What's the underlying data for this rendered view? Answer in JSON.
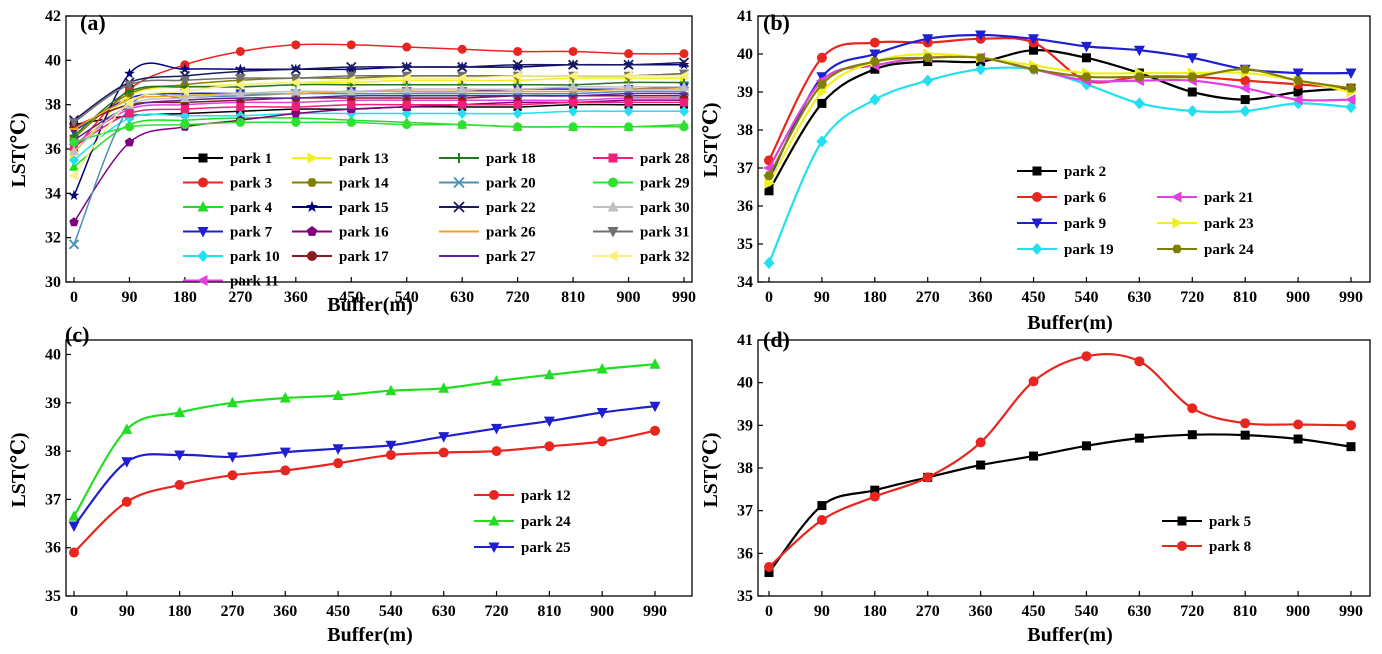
{
  "chart_data": [
    {
      "panel": "(a)",
      "type": "line",
      "xlabel": "Buffer(m)",
      "ylabel": "LST(℃)",
      "ylim": [
        30,
        42
      ],
      "yticks": [
        "30",
        "32",
        "34",
        "36",
        "38",
        "40",
        "42"
      ],
      "x": [
        0,
        90,
        180,
        270,
        360,
        450,
        540,
        630,
        720,
        810,
        900,
        990
      ],
      "x_ticks": [
        "0",
        "90",
        "180",
        "270",
        "360",
        "450",
        "540",
        "630",
        "720",
        "810",
        "900",
        "990"
      ],
      "legend_position": "bottom",
      "series": [
        {
          "name": "park 1",
          "color": "#000000",
          "marker": "square",
          "values": [
            37.1,
            37.5,
            37.6,
            37.7,
            37.8,
            37.8,
            37.9,
            37.9,
            37.9,
            38.0,
            38.0,
            38.0
          ]
        },
        {
          "name": "park 3",
          "color": "#e8251f",
          "marker": "circle",
          "values": [
            36.0,
            38.7,
            39.8,
            40.4,
            40.7,
            40.7,
            40.6,
            40.5,
            40.4,
            40.4,
            40.3,
            40.3
          ]
        },
        {
          "name": "park 4",
          "color": "#22dd22",
          "marker": "triangle-up",
          "values": [
            35.2,
            37.1,
            37.3,
            37.4,
            37.4,
            37.3,
            37.2,
            37.1,
            37.0,
            37.0,
            37.0,
            37.1
          ]
        },
        {
          "name": "park 7",
          "color": "#1f1fd0",
          "marker": "triangle-down",
          "values": [
            36.8,
            38.3,
            38.5,
            38.5,
            38.5,
            38.6,
            38.6,
            38.6,
            38.7,
            38.7,
            38.7,
            38.8
          ]
        },
        {
          "name": "park 10",
          "color": "#22e0f0",
          "marker": "diamond",
          "values": [
            35.5,
            37.4,
            37.5,
            37.5,
            37.6,
            37.6,
            37.6,
            37.6,
            37.6,
            37.7,
            37.7,
            37.7
          ]
        },
        {
          "name": "park 11",
          "color": "#e040e0",
          "marker": "triangle-left",
          "values": [
            36.2,
            37.8,
            38.0,
            38.1,
            38.1,
            38.2,
            38.2,
            38.2,
            38.2,
            38.2,
            38.3,
            38.3
          ]
        },
        {
          "name": "park 13",
          "color": "#f0f020",
          "marker": "triangle-right",
          "values": [
            35.8,
            38.4,
            38.8,
            38.9,
            39.0,
            39.0,
            39.1,
            39.1,
            39.1,
            39.2,
            39.2,
            39.2
          ]
        },
        {
          "name": "park 14",
          "color": "#808000",
          "marker": "hexagon",
          "values": [
            36.5,
            38.5,
            38.9,
            39.1,
            39.2,
            39.2,
            39.3,
            39.3,
            39.3,
            39.3,
            39.3,
            39.4
          ]
        },
        {
          "name": "park 15",
          "color": "#000080",
          "marker": "star",
          "values": [
            33.9,
            39.4,
            39.6,
            39.6,
            39.6,
            39.6,
            39.7,
            39.7,
            39.7,
            39.8,
            39.8,
            39.8
          ]
        },
        {
          "name": "park 16",
          "color": "#800080",
          "marker": "pentagon",
          "values": [
            32.7,
            36.3,
            37.0,
            37.3,
            37.6,
            37.8,
            37.9,
            38.0,
            38.1,
            38.1,
            38.2,
            38.2
          ]
        },
        {
          "name": "park 17",
          "color": "#8b1a1a",
          "marker": "circle",
          "values": [
            37.0,
            38.0,
            38.1,
            38.2,
            38.3,
            38.3,
            38.3,
            38.3,
            38.4,
            38.4,
            38.4,
            38.4
          ]
        },
        {
          "name": "park 18",
          "color": "#207820",
          "marker": "plus",
          "values": [
            36.6,
            38.6,
            38.8,
            38.8,
            38.9,
            38.9,
            38.9,
            38.9,
            38.9,
            38.9,
            39.0,
            39.0
          ]
        },
        {
          "name": "park 20",
          "color": "#4a90b8",
          "marker": "x",
          "values": [
            31.7,
            37.9,
            38.3,
            38.4,
            38.5,
            38.5,
            38.5,
            38.5,
            38.5,
            38.5,
            38.6,
            38.6
          ]
        },
        {
          "name": "park 22",
          "color": "#1a1a60",
          "marker": "x",
          "values": [
            37.3,
            39.0,
            39.3,
            39.5,
            39.6,
            39.7,
            39.7,
            39.7,
            39.8,
            39.8,
            39.8,
            39.9
          ]
        },
        {
          "name": "park 26",
          "color": "#f0a020",
          "marker": "dash",
          "values": [
            36.9,
            38.2,
            38.4,
            38.5,
            38.5,
            38.6,
            38.6,
            38.6,
            38.6,
            38.6,
            38.7,
            38.7
          ]
        },
        {
          "name": "park 27",
          "color": "#6020a0",
          "marker": "dash",
          "values": [
            36.4,
            37.9,
            38.2,
            38.3,
            38.3,
            38.4,
            38.4,
            38.4,
            38.4,
            38.4,
            38.5,
            38.5
          ]
        },
        {
          "name": "park 28",
          "color": "#f0207a",
          "marker": "square",
          "values": [
            36.1,
            37.6,
            37.8,
            37.9,
            37.9,
            38.0,
            38.0,
            38.0,
            38.0,
            38.1,
            38.1,
            38.1
          ]
        },
        {
          "name": "park 29",
          "color": "#30e030",
          "marker": "circle",
          "values": [
            36.3,
            37.0,
            37.1,
            37.2,
            37.2,
            37.2,
            37.1,
            37.1,
            37.0,
            37.0,
            37.0,
            37.0
          ]
        },
        {
          "name": "park 30",
          "color": "#c0c0c0",
          "marker": "triangle-up",
          "values": [
            35.9,
            38.0,
            38.3,
            38.5,
            38.6,
            38.6,
            38.7,
            38.7,
            38.7,
            38.8,
            38.8,
            38.8
          ]
        },
        {
          "name": "park 31",
          "color": "#707070",
          "marker": "triangle-down",
          "values": [
            37.2,
            38.9,
            39.1,
            39.2,
            39.2,
            39.3,
            39.3,
            39.3,
            39.3,
            39.3,
            39.3,
            39.4
          ]
        },
        {
          "name": "park 32",
          "color": "#f8f080",
          "marker": "triangle-left",
          "values": [
            34.8,
            38.1,
            38.6,
            38.9,
            39.0,
            39.1,
            39.2,
            39.2,
            39.3,
            39.3,
            39.3,
            39.3
          ]
        }
      ]
    },
    {
      "panel": "(b)",
      "type": "line",
      "xlabel": "Buffer(m)",
      "ylabel": "LST(℃)",
      "ylim": [
        34,
        41
      ],
      "yticks": [
        "34",
        "35",
        "36",
        "37",
        "38",
        "39",
        "40",
        "41"
      ],
      "x": [
        0,
        90,
        180,
        270,
        360,
        450,
        540,
        630,
        720,
        810,
        900,
        990
      ],
      "x_ticks": [
        "0",
        "90",
        "180",
        "270",
        "360",
        "450",
        "540",
        "630",
        "720",
        "810",
        "900",
        "990"
      ],
      "legend_position": "bottom-center",
      "series": [
        {
          "name": "park 2",
          "color": "#000000",
          "marker": "square",
          "values": [
            36.4,
            38.7,
            39.6,
            39.8,
            39.8,
            40.1,
            39.9,
            39.5,
            39.0,
            38.8,
            39.0,
            39.1
          ]
        },
        {
          "name": "park 6",
          "color": "#e8251f",
          "marker": "circle",
          "values": [
            37.2,
            39.9,
            40.3,
            40.3,
            40.4,
            40.3,
            39.3,
            39.4,
            39.4,
            39.3,
            39.2,
            39.1
          ]
        },
        {
          "name": "park 9",
          "color": "#1f1fd0",
          "marker": "triangle-down",
          "values": [
            36.7,
            39.4,
            40.0,
            40.4,
            40.5,
            40.4,
            40.2,
            40.1,
            39.9,
            39.6,
            39.5,
            39.5
          ]
        },
        {
          "name": "park 19",
          "color": "#22e0f0",
          "marker": "diamond",
          "values": [
            34.5,
            37.7,
            38.8,
            39.3,
            39.6,
            39.6,
            39.2,
            38.7,
            38.5,
            38.5,
            38.7,
            38.6
          ]
        },
        {
          "name": "park 21",
          "color": "#e040e0",
          "marker": "triangle-left",
          "values": [
            37.0,
            39.3,
            39.7,
            39.9,
            39.9,
            39.6,
            39.3,
            39.3,
            39.3,
            39.1,
            38.8,
            38.8
          ]
        },
        {
          "name": "park 23",
          "color": "#f0f020",
          "marker": "triangle-right",
          "values": [
            36.6,
            39.0,
            39.8,
            40.0,
            39.9,
            39.7,
            39.5,
            39.5,
            39.5,
            39.5,
            39.3,
            39.0
          ]
        },
        {
          "name": "park 24",
          "color": "#808000",
          "marker": "hexagon",
          "values": [
            36.8,
            39.2,
            39.8,
            39.9,
            39.9,
            39.6,
            39.4,
            39.4,
            39.4,
            39.6,
            39.3,
            39.1
          ]
        }
      ]
    },
    {
      "panel": "(c)",
      "type": "line",
      "xlabel": "Buffer(m)",
      "ylabel": "LST(℃)",
      "ylim": [
        35,
        40.3
      ],
      "yticks": [
        "35",
        "36",
        "37",
        "38",
        "39",
        "40"
      ],
      "x": [
        0,
        90,
        180,
        270,
        360,
        450,
        540,
        630,
        720,
        810,
        900,
        990
      ],
      "x_ticks": [
        "0",
        "90",
        "180",
        "270",
        "360",
        "450",
        "540",
        "630",
        "720",
        "810",
        "900",
        "990"
      ],
      "legend_position": "right-center",
      "series": [
        {
          "name": "park 12",
          "color": "#e8251f",
          "marker": "circle",
          "values": [
            35.9,
            36.95,
            37.3,
            37.5,
            37.6,
            37.75,
            37.92,
            37.97,
            38.0,
            38.1,
            38.2,
            38.42
          ]
        },
        {
          "name": "park 24",
          "color": "#22dd22",
          "marker": "triangle-up",
          "values": [
            36.65,
            38.45,
            38.8,
            39.0,
            39.1,
            39.15,
            39.25,
            39.3,
            39.45,
            39.58,
            39.7,
            39.8
          ]
        },
        {
          "name": "park 25",
          "color": "#1f1fd0",
          "marker": "triangle-down",
          "values": [
            36.45,
            37.78,
            37.92,
            37.88,
            37.98,
            38.05,
            38.12,
            38.3,
            38.47,
            38.62,
            38.8,
            38.93
          ]
        }
      ]
    },
    {
      "panel": "(d)",
      "type": "line",
      "xlabel": "Buffer(m)",
      "ylabel": "LST(℃)",
      "ylim": [
        35,
        41
      ],
      "yticks": [
        "35",
        "36",
        "37",
        "38",
        "39",
        "40",
        "41"
      ],
      "x": [
        0,
        90,
        180,
        270,
        360,
        450,
        540,
        630,
        720,
        810,
        900,
        990
      ],
      "x_ticks": [
        "0",
        "90",
        "180",
        "270",
        "360",
        "450",
        "540",
        "630",
        "720",
        "810",
        "900",
        "990"
      ],
      "legend_position": "bottom-right",
      "series": [
        {
          "name": "park 5",
          "color": "#000000",
          "marker": "square",
          "values": [
            35.55,
            37.12,
            37.48,
            37.78,
            38.07,
            38.28,
            38.52,
            38.7,
            38.78,
            38.77,
            38.68,
            38.5
          ]
        },
        {
          "name": "park 8",
          "color": "#e8251f",
          "marker": "circle",
          "values": [
            35.68,
            36.78,
            37.33,
            37.78,
            38.6,
            40.03,
            40.62,
            40.5,
            39.4,
            39.05,
            39.02,
            39.0
          ]
        }
      ]
    }
  ]
}
